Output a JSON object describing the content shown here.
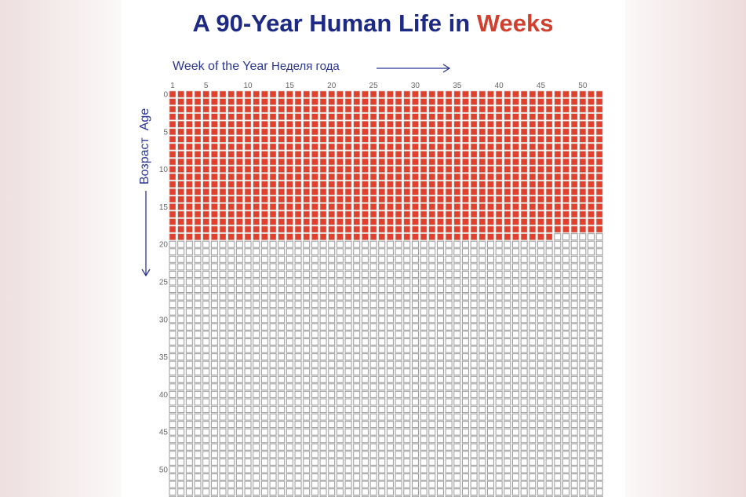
{
  "chart_data": {
    "type": "heatmap",
    "title": "A 90-Year Human Life in",
    "title_highlight": "Weeks",
    "xlabel": "Week of the Year",
    "xlabel_ru": "Неделя года",
    "ylabel": "Age",
    "ylabel_ru": "Возраст",
    "columns": 52,
    "rows": 90,
    "weeks_lived": 1034,
    "x_ticks": [
      1,
      5,
      10,
      15,
      20,
      25,
      30,
      35,
      40,
      45,
      50
    ],
    "y_ticks": [
      0,
      5,
      10,
      15,
      20,
      25,
      30,
      35,
      40,
      45,
      50
    ],
    "colors": {
      "lived": "#e0402c",
      "title": "#1c2a85",
      "highlight": "#d0402f",
      "empty": "#9a9a9a"
    }
  }
}
